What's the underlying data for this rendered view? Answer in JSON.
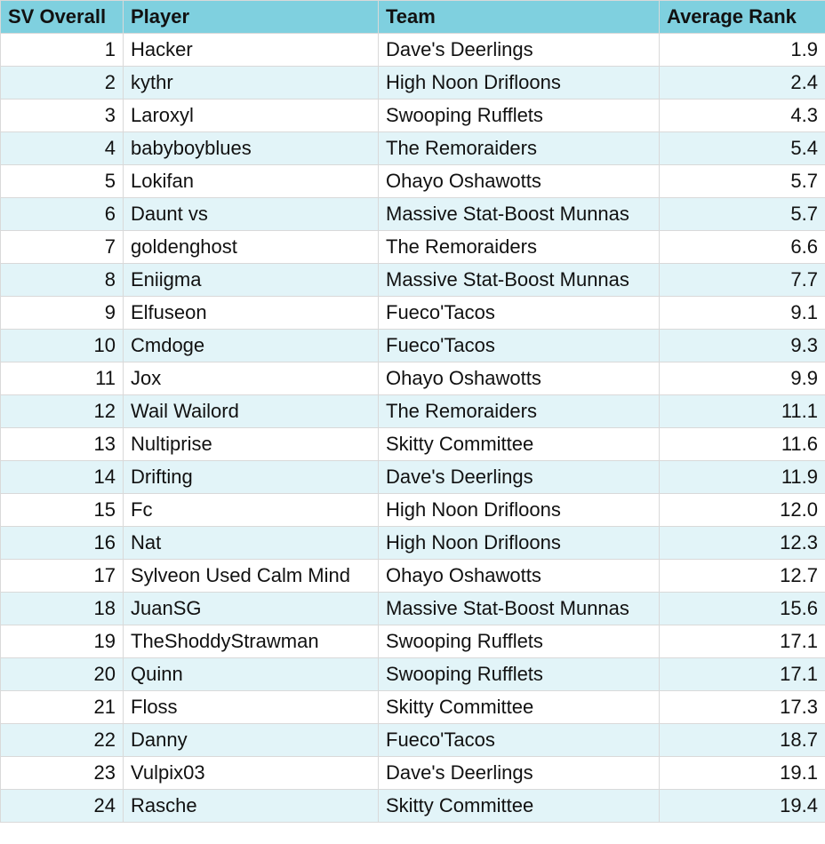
{
  "colors": {
    "header_bg": "#7fd0df",
    "alt_row_bg": "#e2f4f8",
    "row_bg": "#ffffff"
  },
  "columns": [
    "SV Overall",
    "Player",
    "Team",
    "Average Rank"
  ],
  "rows": [
    {
      "rank": "1",
      "player": "Hacker",
      "team": "Dave's Deerlings",
      "avg": "1.9"
    },
    {
      "rank": "2",
      "player": "kythr",
      "team": "High Noon Drifloons",
      "avg": "2.4"
    },
    {
      "rank": "3",
      "player": "Laroxyl",
      "team": "Swooping Rufflets",
      "avg": "4.3"
    },
    {
      "rank": "4",
      "player": "babyboyblues",
      "team": "The Remoraiders",
      "avg": "5.4"
    },
    {
      "rank": "5",
      "player": "Lokifan",
      "team": "Ohayo Oshawotts",
      "avg": "5.7"
    },
    {
      "rank": "6",
      "player": "Daunt vs",
      "team": "Massive Stat-Boost Munnas",
      "avg": "5.7"
    },
    {
      "rank": "7",
      "player": "goldenghost",
      "team": "The Remoraiders",
      "avg": "6.6"
    },
    {
      "rank": "8",
      "player": "Eniigma",
      "team": "Massive Stat-Boost Munnas",
      "avg": "7.7"
    },
    {
      "rank": "9",
      "player": "Elfuseon",
      "team": "Fueco'Tacos",
      "avg": "9.1"
    },
    {
      "rank": "10",
      "player": "Cmdoge",
      "team": "Fueco'Tacos",
      "avg": "9.3"
    },
    {
      "rank": "11",
      "player": "Jox",
      "team": "Ohayo Oshawotts",
      "avg": "9.9"
    },
    {
      "rank": "12",
      "player": "Wail Wailord",
      "team": "The Remoraiders",
      "avg": "11.1"
    },
    {
      "rank": "13",
      "player": "Nultiprise",
      "team": "Skitty Committee",
      "avg": "11.6"
    },
    {
      "rank": "14",
      "player": "Drifting",
      "team": "Dave's Deerlings",
      "avg": "11.9"
    },
    {
      "rank": "15",
      "player": "Fc",
      "team": "High Noon Drifloons",
      "avg": "12.0"
    },
    {
      "rank": "16",
      "player": "Nat",
      "team": "High Noon Drifloons",
      "avg": "12.3"
    },
    {
      "rank": "17",
      "player": "Sylveon Used Calm Mind",
      "team": "Ohayo Oshawotts",
      "avg": "12.7"
    },
    {
      "rank": "18",
      "player": "JuanSG",
      "team": "Massive Stat-Boost Munnas",
      "avg": "15.6"
    },
    {
      "rank": "19",
      "player": "TheShoddyStrawman",
      "team": "Swooping Rufflets",
      "avg": "17.1"
    },
    {
      "rank": "20",
      "player": "Quinn",
      "team": "Swooping Rufflets",
      "avg": "17.1"
    },
    {
      "rank": "21",
      "player": "Floss",
      "team": "Skitty Committee",
      "avg": "17.3"
    },
    {
      "rank": "22",
      "player": "Danny",
      "team": "Fueco'Tacos",
      "avg": "18.7"
    },
    {
      "rank": "23",
      "player": "Vulpix03",
      "team": "Dave's Deerlings",
      "avg": "19.1"
    },
    {
      "rank": "24",
      "player": "Rasche",
      "team": "Skitty Committee",
      "avg": "19.4"
    }
  ]
}
